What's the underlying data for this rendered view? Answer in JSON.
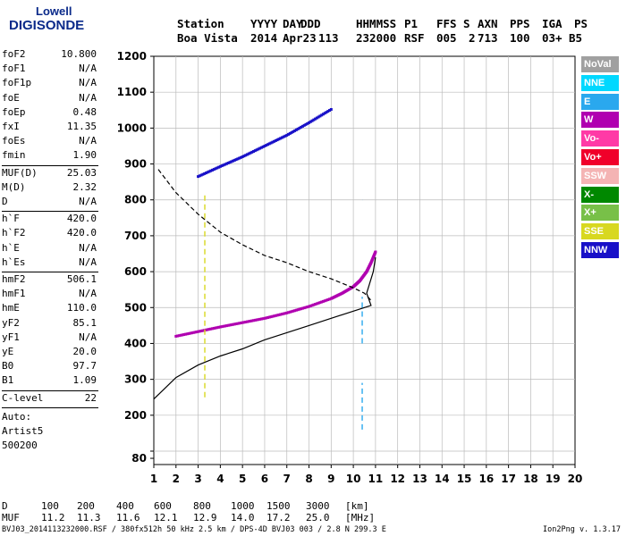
{
  "logo": {
    "top": "Lowell",
    "bottom": "DIGISONDE"
  },
  "header": {
    "row1": [
      "Station",
      "YYYY",
      "DAY",
      "DDD",
      "HHMMSS",
      "P1",
      "FFS",
      "S",
      "AXN",
      "PPS",
      "IGA",
      "PS"
    ],
    "row2": [
      "Boa Vista",
      "2014",
      "Apr23",
      "113",
      "232000",
      "RSF",
      "005",
      "2",
      "713",
      "100",
      "03+",
      "B5"
    ]
  },
  "params1": [
    {
      "label": "foF2",
      "value": "10.800"
    },
    {
      "label": "foF1",
      "value": "N/A"
    },
    {
      "label": "foF1p",
      "value": "N/A"
    },
    {
      "label": "foE",
      "value": "N/A"
    },
    {
      "label": "foEp",
      "value": "0.48"
    },
    {
      "label": "fxI",
      "value": "11.35"
    },
    {
      "label": "foEs",
      "value": "N/A"
    },
    {
      "label": "fmin",
      "value": "1.90"
    }
  ],
  "params2": [
    {
      "label": "MUF(D)",
      "value": "25.03"
    },
    {
      "label": "M(D)",
      "value": "2.32"
    },
    {
      "label": "D",
      "value": "N/A"
    }
  ],
  "params3": [
    {
      "label": "h`F",
      "value": "420.0"
    },
    {
      "label": "h`F2",
      "value": "420.0"
    },
    {
      "label": "h`E",
      "value": "N/A"
    },
    {
      "label": "h`Es",
      "value": "N/A"
    }
  ],
  "params4": [
    {
      "label": "hmF2",
      "value": "506.1"
    },
    {
      "label": "hmF1",
      "value": "N/A"
    },
    {
      "label": "hmE",
      "value": "110.0"
    },
    {
      "label": "yF2",
      "value": "85.1"
    },
    {
      "label": "yF1",
      "value": "N/A"
    },
    {
      "label": "yE",
      "value": "20.0"
    },
    {
      "label": "B0",
      "value": "97.7"
    },
    {
      "label": "B1",
      "value": "1.09"
    }
  ],
  "params5": [
    {
      "label": "C-level",
      "value": "22"
    }
  ],
  "auto_lines": [
    "Auto:",
    "Artist5",
    "500200"
  ],
  "legend": [
    {
      "label": "NoVal",
      "color": "#a0a0a0"
    },
    {
      "label": "NNE",
      "color": "#00d8ff"
    },
    {
      "label": "E",
      "color": "#2aa8ee"
    },
    {
      "label": "W",
      "color": "#b000b0"
    },
    {
      "label": "Vo-",
      "color": "#ff3aa6"
    },
    {
      "label": "Vo+",
      "color": "#f0002a"
    },
    {
      "label": "SSW",
      "color": "#f4b4b4"
    },
    {
      "label": "X-",
      "color": "#008800"
    },
    {
      "label": "X+",
      "color": "#78c048"
    },
    {
      "label": "SSE",
      "color": "#d8d820"
    },
    {
      "label": "NNW",
      "color": "#1810c8"
    }
  ],
  "dtable": {
    "row1_label": "D",
    "row1_values": [
      "100",
      "200",
      "400",
      "600",
      "800",
      "1000",
      "1500",
      "3000"
    ],
    "row1_unit": "[km]",
    "row2_label": "MUF",
    "row2_values": [
      "11.2",
      "11.3",
      "11.6",
      "12.1",
      "12.9",
      "14.0",
      "17.2",
      "25.0"
    ],
    "row2_unit": "[MHz]"
  },
  "footer": "BVJ03_2014113232000.RSF / 380fx512h 50 kHz 2.5 km / DPS-4D BVJ03 003 / 2.8 N 299.3 E",
  "version": "Ion2Png v. 1.3.17",
  "chart_data": {
    "type": "scatter",
    "xlim": [
      1,
      20
    ],
    "ylim": [
      80,
      1200
    ],
    "x_ticks": [
      1,
      2,
      3,
      4,
      5,
      6,
      7,
      8,
      9,
      10,
      11,
      12,
      13,
      14,
      15,
      16,
      17,
      18,
      19,
      20
    ],
    "y_ticks": [
      80,
      100,
      200,
      300,
      400,
      500,
      600,
      700,
      800,
      900,
      1000,
      1100,
      1200
    ],
    "y_tick_labels": [
      "80",
      "",
      "200",
      "300",
      "400",
      "500",
      "600",
      "700",
      "800",
      "900",
      "1000",
      "1100",
      "1200"
    ],
    "grid": true,
    "legend_position": "right",
    "series": [
      {
        "kind": "points",
        "color": "#1810c8",
        "x": [
          3.0,
          4.0,
          5.0,
          6.0,
          7.0,
          8.0,
          9.0
        ],
        "y": [
          865,
          893,
          920,
          950,
          980,
          1015,
          1052
        ]
      },
      {
        "kind": "points",
        "color": "#b000b0",
        "x": [
          2.0,
          3.0,
          4.0,
          5.0,
          6.0,
          7.0,
          8.0,
          9.0,
          9.5,
          10.0,
          10.3,
          10.6,
          10.8,
          11.0
        ],
        "y": [
          420,
          433,
          446,
          458,
          470,
          485,
          503,
          525,
          540,
          558,
          575,
          600,
          625,
          655
        ]
      },
      {
        "kind": "line",
        "style": "dashed",
        "color": "#000000",
        "x": [
          1.2,
          2.0,
          3.0,
          4.0,
          5.0,
          6.0,
          7.0,
          8.0,
          9.0,
          10.0,
          10.5,
          10.8
        ],
        "y": [
          885,
          820,
          760,
          710,
          675,
          645,
          625,
          600,
          580,
          555,
          540,
          520
        ]
      },
      {
        "kind": "line",
        "style": "solid",
        "color": "#000000",
        "x": [
          1.0,
          1.5,
          2.0,
          3.0,
          4.0,
          5.0,
          6.0,
          7.0,
          8.0,
          9.0,
          10.0,
          10.5,
          10.8,
          10.6,
          10.9,
          11.0
        ],
        "y": [
          245,
          275,
          305,
          340,
          365,
          385,
          410,
          430,
          450,
          470,
          490,
          500,
          506,
          540,
          600,
          640
        ]
      },
      {
        "kind": "vertical-band",
        "color": "#2aa8ee",
        "x": [
          10.4,
          10.4,
          10.4,
          10.4,
          10.4
        ],
        "y": [
          160,
          290,
          400,
          530,
          800
        ]
      },
      {
        "kind": "vertical-band",
        "color": "#d8d820",
        "x": [
          3.3,
          3.3
        ],
        "y": [
          250,
          820
        ]
      }
    ]
  }
}
